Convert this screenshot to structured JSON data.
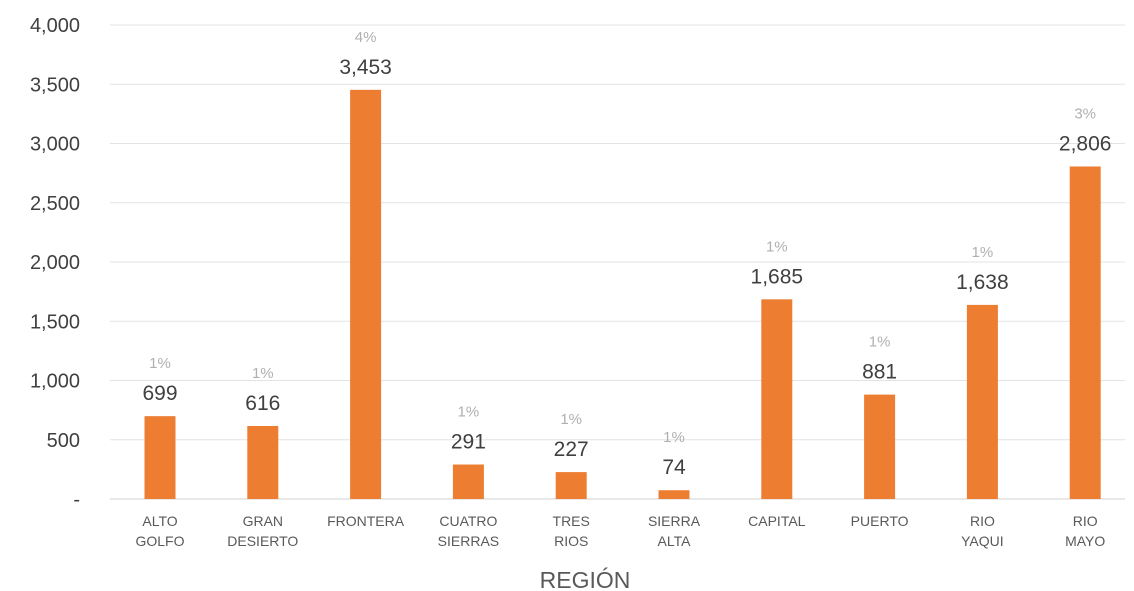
{
  "chart_data": {
    "type": "bar",
    "xlabel": "REGIÓN",
    "ylabel": "",
    "ylim": [
      0,
      4000
    ],
    "yticks": [
      0,
      500,
      1000,
      1500,
      2000,
      2500,
      3000,
      3500,
      4000
    ],
    "ytick_labels": [
      "-",
      "500",
      "1,000",
      "1,500",
      "2,000",
      "2,500",
      "3,000",
      "3,500",
      "4,000"
    ],
    "grid": true,
    "bar_color": "#ED7D31",
    "categories": [
      [
        "ALTO",
        "GOLFO"
      ],
      [
        "GRAN",
        "DESIERTO"
      ],
      [
        "FRONTERA"
      ],
      [
        "CUATRO",
        "SIERRAS"
      ],
      [
        "TRES",
        "RIOS"
      ],
      [
        "SIERRA",
        "ALTA"
      ],
      [
        "CAPITAL"
      ],
      [
        "PUERTO"
      ],
      [
        "RIO",
        "YAQUI"
      ],
      [
        "RIO",
        "MAYO"
      ]
    ],
    "values": [
      699,
      616,
      3453,
      291,
      227,
      74,
      1685,
      881,
      1638,
      2806
    ],
    "value_labels": [
      "699",
      "616",
      "3,453",
      "291",
      "227",
      "74",
      "1,685",
      "881",
      "1,638",
      "2,806"
    ],
    "percent_labels": [
      "1%",
      "1%",
      "4%",
      "1%",
      "1%",
      "1%",
      "1%",
      "1%",
      "1%",
      "3%"
    ]
  }
}
